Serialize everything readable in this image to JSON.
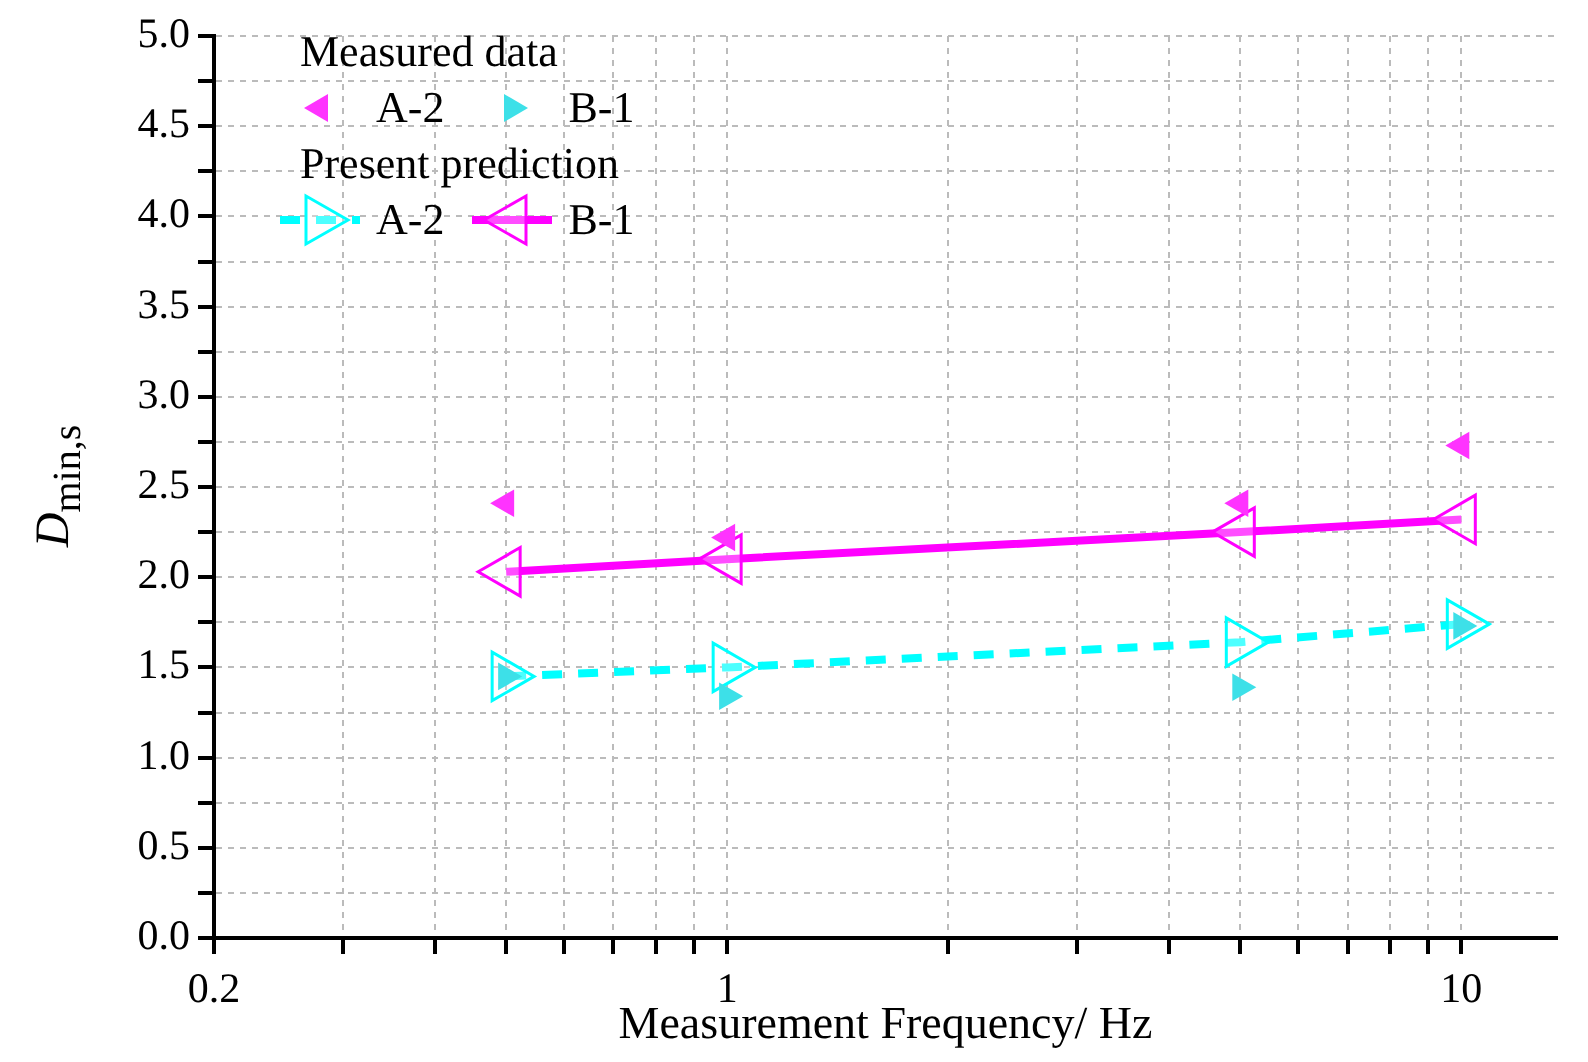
{
  "chart_data": {
    "type": "scatter",
    "xlabel": "Measurement Frequency/ Hz",
    "ylabel": "D$_{min,s}$",
    "legend_title": "Measured data",
    "annotations": [
      "Present prediction"
    ],
    "log": "x",
    "xlim": [
      0.2,
      13.5
    ],
    "ylim": [
      0,
      5
    ],
    "xticks": [
      0.2,
      {
        "value": 0.3,
        "label": null
      },
      {
        "value": 0.4,
        "label": null
      },
      {
        "value": 0.5,
        "label": null
      },
      {
        "value": 0.6,
        "label": null
      },
      {
        "value": 0.7,
        "label": null
      },
      {
        "value": 0.8,
        "label": null
      },
      {
        "value": 0.9,
        "label": null
      },
      1,
      {
        "value": 2,
        "label": null
      },
      {
        "value": 3,
        "label": null
      },
      {
        "value": 4,
        "label": null
      },
      {
        "value": 5,
        "label": null
      },
      {
        "value": 6,
        "label": null
      },
      {
        "value": 7,
        "label": null
      },
      {
        "value": 8,
        "label": null
      },
      {
        "value": 9,
        "label": null
      },
      10
    ],
    "yticks": [
      {
        "value": 0,
        "label": "0.0"
      },
      {
        "value": 0.25,
        "label": null
      },
      0.5,
      {
        "value": 0.75,
        "label": null
      },
      {
        "value": 1,
        "label": "1.0"
      },
      {
        "value": 1.25,
        "label": null
      },
      1.5,
      {
        "value": 1.75,
        "label": null
      },
      {
        "value": 2,
        "label": "2.0"
      },
      {
        "value": 2.25,
        "label": null
      },
      2.5,
      {
        "value": 2.75,
        "label": null
      },
      {
        "value": 3,
        "label": "3.0"
      },
      {
        "value": 3.25,
        "label": null
      },
      3.5,
      {
        "value": 3.75,
        "label": null
      },
      {
        "value": 4,
        "label": "4.0"
      },
      {
        "value": 4.25,
        "label": null
      },
      4.5,
      {
        "value": 4.75,
        "label": null
      },
      {
        "value": 5,
        "label": "5.0"
      }
    ],
    "grid": true,
    "legend": "top left",
    "marker": "triangle",
    "x": [
      0.5,
      1,
      5,
      10
    ],
    "series": [
      {
        "name": "A-2",
        "type": "scatter",
        "color": "#ff33ff",
        "values": [
          2.41,
          2.22,
          2.41,
          2.73
        ]
      },
      {
        "name": "B-1",
        "type": "scatter",
        "color": "#3de0e8",
        "values": [
          1.45,
          1.34,
          1.39,
          1.73
        ]
      },
      {
        "name": "A-2",
        "type": "line",
        "line_style": "dashed",
        "color": "#00ffff",
        "values": [
          1.45,
          1.5,
          1.64,
          1.74
        ]
      },
      {
        "name": "B-1",
        "type": "line",
        "line_style": "solid",
        "color": "#ff00ff",
        "values": [
          2.03,
          2.1,
          2.25,
          2.32
        ]
      }
    ]
  }
}
